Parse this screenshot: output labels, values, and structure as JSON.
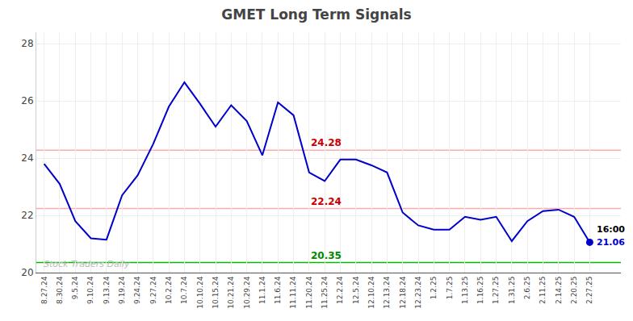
{
  "chart_data": {
    "type": "line",
    "title": "GMET Long Term Signals",
    "categories": [
      "8.27.24",
      "8.30.24",
      "9.5.24",
      "9.10.24",
      "9.13.24",
      "9.19.24",
      "9.24.24",
      "9.27.24",
      "10.2.24",
      "10.7.24",
      "10.10.24",
      "10.15.24",
      "10.21.24",
      "10.29.24",
      "11.1.24",
      "11.6.24",
      "11.11.24",
      "11.20.24",
      "11.25.24",
      "12.2.24",
      "12.5.24",
      "12.10.24",
      "12.13.24",
      "12.18.24",
      "12.23.24",
      "1.2.25",
      "1.7.25",
      "1.13.25",
      "1.16.25",
      "1.27.25",
      "1.31.25",
      "2.6.25",
      "2.11.25",
      "2.14.25",
      "2.20.25",
      "2.27.25"
    ],
    "series": [
      {
        "color": "#0000cc",
        "marker": "last_point",
        "values": [
          23.8,
          23.1,
          21.8,
          21.2,
          21.15,
          22.7,
          23.4,
          24.5,
          25.8,
          26.65,
          25.9,
          25.1,
          25.85,
          25.3,
          24.1,
          25.95,
          25.5,
          23.5,
          23.2,
          23.95,
          23.95,
          23.75,
          23.5,
          22.1,
          21.65,
          21.5,
          21.5,
          21.95,
          21.85,
          21.95,
          21.1,
          21.8,
          22.15,
          22.2,
          21.95,
          21.06
        ]
      }
    ],
    "hlines": [
      {
        "value": 24.28,
        "color": "#ffaaaa",
        "label": "24.28",
        "label_color": "#cc0000",
        "label_at": "11.20.24"
      },
      {
        "value": 22.24,
        "color": "#ffaaaa",
        "label": "22.24",
        "label_color": "#cc0000",
        "label_at": "11.20.24"
      },
      {
        "value": 20.35,
        "color": "#00bb00",
        "label": "20.35",
        "label_color": "#008800",
        "label_at": "11.20.24"
      }
    ],
    "annotations": [
      {
        "text": "16:00",
        "color": "#000000"
      },
      {
        "text": "21.06",
        "color": "#0000cc"
      }
    ],
    "watermark": {
      "text": "Stock Traders Daily",
      "color": "#bbbbbb"
    },
    "ylim": [
      20.0,
      28.4
    ],
    "yticks": [
      20,
      22,
      24,
      26,
      28
    ],
    "grid": true
  }
}
